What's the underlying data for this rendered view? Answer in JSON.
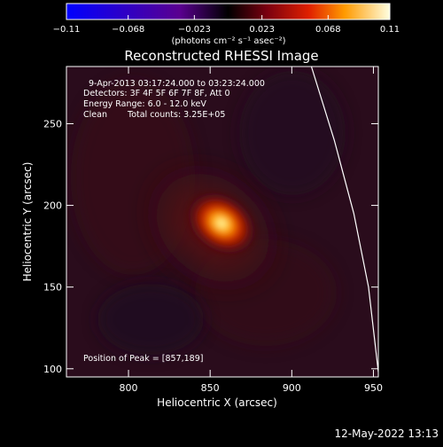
{
  "chart_data": {
    "type": "heatmap",
    "title": "Reconstructed RHESSI Image",
    "xlabel": "Heliocentric X (arcsec)",
    "ylabel": "Heliocentric Y (arcsec)",
    "xlim": [
      762,
      953
    ],
    "ylim": [
      95,
      285
    ],
    "xticks": [
      "800",
      "850",
      "900",
      "950"
    ],
    "xtick_values": [
      800,
      850,
      900,
      950
    ],
    "yticks": [
      "100",
      "150",
      "200",
      "250"
    ],
    "ytick_values": [
      100,
      150,
      200,
      250
    ],
    "peak": {
      "x": 857,
      "y": 189
    },
    "limb_points": [
      [
        912,
        285
      ],
      [
        926,
        240
      ],
      [
        938,
        195
      ],
      [
        947,
        150
      ],
      [
        953,
        98
      ]
    ],
    "colorbar": {
      "colormap": "red-temperature",
      "range": [
        -0.11,
        0.11
      ],
      "tick_labels": [
        "−0.11",
        "−0.068",
        "−0.023",
        "0.023",
        "0.068",
        "0.11"
      ],
      "tick_values": [
        -0.11,
        -0.068,
        -0.023,
        0.023,
        0.068,
        0.11
      ],
      "unit_label": "(photons cm⁻² s⁻¹ asec⁻²)"
    },
    "annotations": {
      "time_range": "9-Apr-2013 03:17:24.000 to 03:23:24.000",
      "detectors": "Detectors: 3F 4F 5F 6F 7F 8F, Att 0",
      "energy_range": "Energy Range: 6.0 - 12.0 keV",
      "algorithm": "Clean",
      "total_counts": "Total counts: 3.25E+05",
      "peak_position": "Position of Peak = [857,189]"
    },
    "timestamp": "12-May-2022 13:13"
  }
}
